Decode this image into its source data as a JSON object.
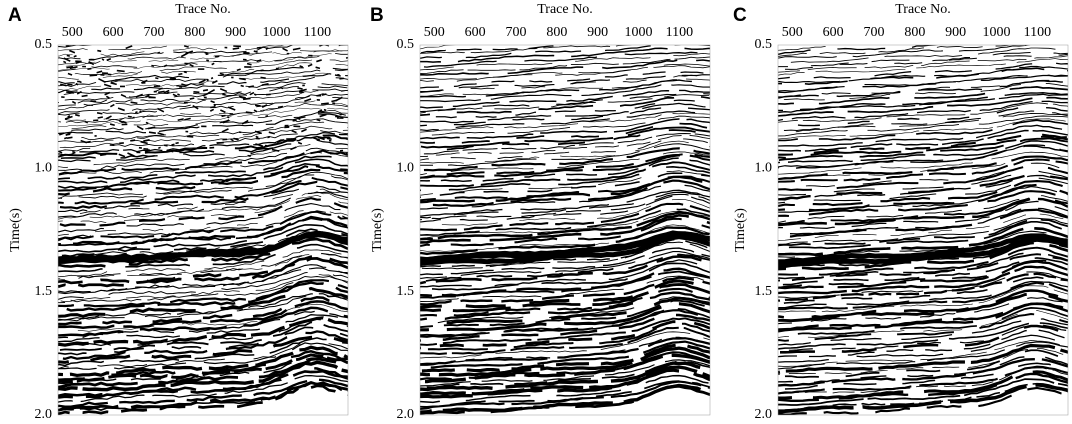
{
  "panels": [
    {
      "label": "A",
      "x_axis_label": "Trace No.",
      "y_axis_label": "Time(s)",
      "xlim": [
        465,
        1175
      ],
      "xticks": [
        500,
        600,
        700,
        800,
        900,
        1000,
        1100
      ],
      "ylim": [
        0.5,
        2.0
      ],
      "yticks": [
        0.5,
        {
          "value": 1,
          "label": "1.0"
        },
        1.5,
        {
          "value": 2,
          "label": "2.0"
        }
      ]
    },
    {
      "label": "B",
      "x_axis_label": "Trace No.",
      "y_axis_label": "Time(s)",
      "xlim": [
        465,
        1175
      ],
      "xticks": [
        500,
        600,
        700,
        800,
        900,
        1000,
        1100
      ],
      "ylim": [
        0.5,
        2.0
      ],
      "yticks": [
        0.5,
        {
          "value": 1,
          "label": "1.0"
        },
        1.5,
        {
          "value": 2,
          "label": "2.0"
        }
      ]
    },
    {
      "label": "C",
      "x_axis_label": "Trace No.",
      "y_axis_label": "Time(s)",
      "xlim": [
        465,
        1175
      ],
      "xticks": [
        500,
        600,
        700,
        800,
        900,
        1000,
        1100
      ],
      "ylim": [
        0.5,
        2.0
      ],
      "yticks": [
        0.5,
        {
          "value": 1,
          "label": "1.0"
        },
        1.5,
        {
          "value": 2,
          "label": "2.0"
        }
      ]
    }
  ]
}
